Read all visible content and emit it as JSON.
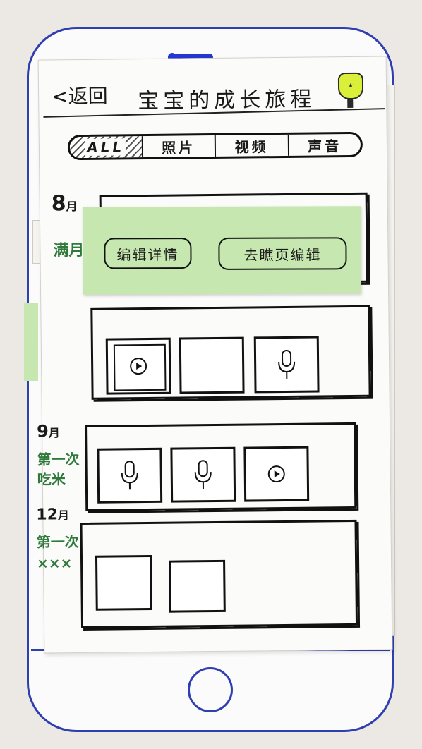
{
  "header": {
    "back_label": "<返回",
    "title": "宝宝的成长旅程"
  },
  "tabs": [
    {
      "label": "ALL",
      "active": true
    },
    {
      "label": "照片",
      "active": false
    },
    {
      "label": "视频",
      "active": false
    },
    {
      "label": "声音",
      "active": false
    }
  ],
  "timeline": [
    {
      "month": "8",
      "unit": "月",
      "event": "满月"
    },
    {
      "month": "9",
      "unit": "月",
      "event_line1": "第一次",
      "event_line2": "吃米"
    },
    {
      "month": "12",
      "unit": "月",
      "event_line1": "第一次",
      "event_line2": "×××"
    }
  ],
  "popup": {
    "edit_details_label": "编辑详情",
    "go_edit_label": "去瞧页编辑"
  },
  "icons": {
    "back": "chevron-left-icon",
    "badge": "badge-icon",
    "video": "play-icon",
    "audio": "microphone-icon"
  },
  "colors": {
    "ink": "#1a1a1a",
    "annotation_green": "#2f7a3a",
    "sticky_note": "#c6e8b0",
    "phone_outline": "#2f3fb0",
    "badge_yellow": "#d9ef3a"
  }
}
